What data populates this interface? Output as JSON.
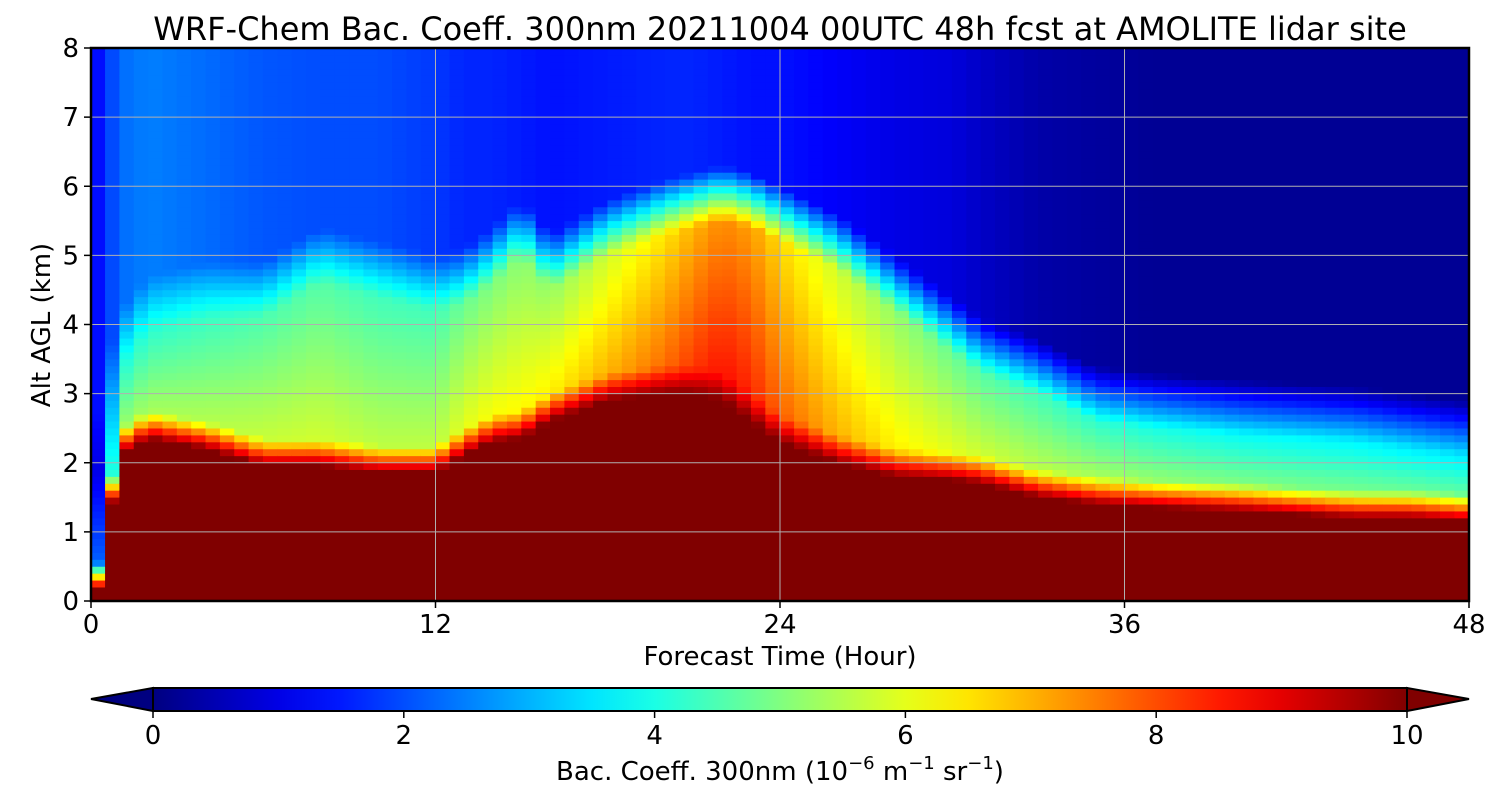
{
  "chart_data": {
    "type": "heatmap",
    "title": "WRF-Chem Bac. Coeff. 300nm  20211004 00UTC 48h fcst at AMOLITE lidar site",
    "xlabel": "Forecast Time (Hour)",
    "ylabel": "Alt AGL (km)",
    "xlim": [
      0,
      48
    ],
    "ylim": [
      0,
      8
    ],
    "x_ticks": [
      "0",
      "12",
      "24",
      "36",
      "48"
    ],
    "y_ticks": [
      "0",
      "1",
      "2",
      "3",
      "4",
      "5",
      "6",
      "7",
      "8"
    ],
    "grid": true,
    "colorscale": "jet",
    "colorbar": {
      "label_prefix": "Bac. Coeff. 300nm  (10",
      "exp1": "−6",
      "mid": " m",
      "exp2": "−1",
      "tail": " sr",
      "exp3": "−1",
      "close": ")",
      "range": [
        0,
        10
      ],
      "extend": "both",
      "ticks": [
        "0",
        "2",
        "4",
        "6",
        "8",
        "10"
      ]
    },
    "time_hours": [
      0,
      0.3,
      1,
      2,
      4,
      6,
      8,
      10,
      12,
      13,
      14,
      15,
      16,
      18,
      20,
      21,
      22,
      23,
      24,
      26,
      28,
      30,
      31,
      33,
      35,
      37,
      40,
      44,
      46,
      48
    ],
    "saturated_layer_top_km": [
      0,
      0.2,
      2.1,
      2.35,
      2.2,
      1.95,
      1.95,
      1.85,
      1.85,
      2.1,
      2.3,
      2.35,
      2.6,
      2.9,
      3.0,
      3.0,
      2.9,
      2.6,
      2.3,
      2.0,
      1.8,
      1.75,
      1.7,
      1.5,
      1.4,
      1.35,
      1.3,
      1.2,
      1.2,
      1.15
    ],
    "mid_layer_value": [
      1,
      1,
      4,
      4.2,
      4.3,
      4.5,
      4.6,
      4.4,
      4.4,
      4.8,
      5.0,
      5.1,
      5.2,
      5.8,
      6.5,
      7.0,
      7.4,
      7.2,
      6.6,
      5.8,
      5.2,
      4.8,
      4.6,
      4.4,
      4.2,
      4.0,
      3.8,
      3.7,
      3.6,
      3.5
    ],
    "mid_layer_top_km": [
      0.5,
      2.2,
      3.4,
      3.9,
      4.1,
      4.1,
      4.6,
      4.4,
      4.2,
      4.3,
      4.6,
      5.0,
      4.5,
      5.0,
      5.3,
      5.4,
      5.5,
      5.4,
      5.2,
      4.8,
      4.2,
      3.6,
      3.3,
      3.0,
      2.6,
      2.5,
      2.4,
      2.3,
      2.2,
      2.1
    ],
    "upper_value": [
      1.2,
      1.4,
      2.3,
      2.5,
      2.3,
      2.1,
      2.0,
      2.0,
      1.8,
      1.6,
      1.6,
      1.5,
      1.4,
      1.5,
      1.6,
      1.6,
      1.5,
      1.4,
      1.4,
      1.2,
      1.0,
      0.9,
      0.7,
      0.4,
      0.3,
      0.2,
      0.2,
      0.2,
      0.2,
      0.2
    ]
  }
}
